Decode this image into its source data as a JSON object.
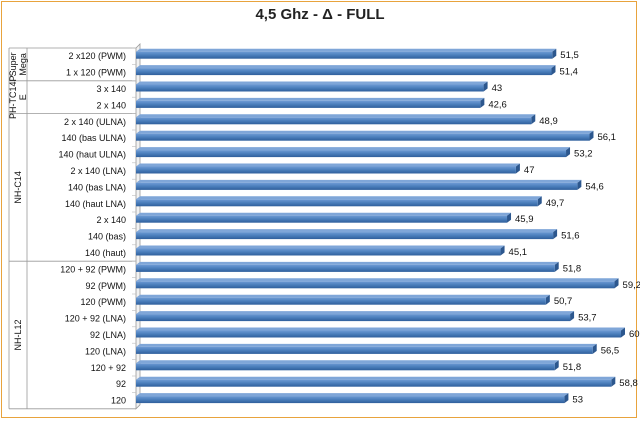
{
  "chart_data": {
    "type": "bar",
    "orientation": "horizontal",
    "title": "4,5 Ghz - Δ - FULL",
    "xlim": [
      0,
      60
    ],
    "grid": false,
    "legend": "none",
    "bar_color": "#4a7ebb",
    "groups": [
      {
        "label": "Super Mega",
        "categories": [
          "2 x120 (PWM)",
          "1 x 120 (PWM)"
        ],
        "values": [
          51.5,
          51.4
        ],
        "value_labels": [
          "51,5",
          "51,4"
        ]
      },
      {
        "label": "PH-TC14PE",
        "categories": [
          "3 x 140",
          "2 x 140"
        ],
        "values": [
          43,
          42.6
        ],
        "value_labels": [
          "43",
          "42,6"
        ]
      },
      {
        "label": "NH-C14",
        "categories": [
          "2 x 140 (ULNA)",
          "140 (bas ULNA)",
          "140 (haut ULNA)",
          "2 x 140 (LNA)",
          "140 (bas LNA)",
          "140 (haut LNA)",
          "2 x 140",
          "140 (bas)",
          "140 (haut)"
        ],
        "values": [
          48.9,
          56.1,
          53.2,
          47,
          54.6,
          49.7,
          45.9,
          51.6,
          45.1
        ],
        "value_labels": [
          "48,9",
          "56,1",
          "53,2",
          "47",
          "54,6",
          "49,7",
          "45,9",
          "51,6",
          "45,1"
        ]
      },
      {
        "label": "NH-L12",
        "categories": [
          "120 + 92 (PWM)",
          "92 (PWM)",
          "120 (PWM)",
          "120 + 92 (LNA)",
          "92 (LNA)",
          "120 (LNA)",
          "120 + 92",
          "92",
          "120"
        ],
        "values": [
          51.8,
          59.2,
          50.7,
          53.7,
          60,
          56.5,
          51.8,
          58.8,
          53
        ],
        "value_labels": [
          "51,8",
          "59,2",
          "50,7",
          "53,7",
          "60",
          "56,5",
          "51,8",
          "58,8",
          "53"
        ]
      }
    ]
  }
}
